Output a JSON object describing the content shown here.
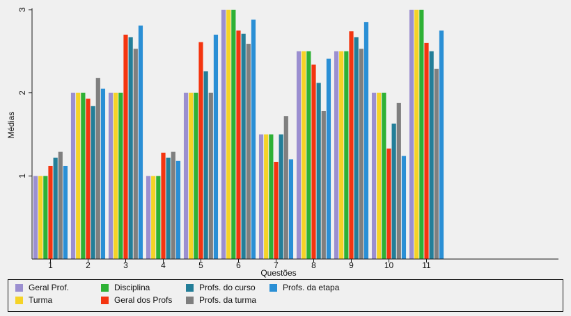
{
  "chart_data": {
    "type": "bar",
    "title": "",
    "xlabel": "Questões",
    "ylabel": "Médias",
    "ylim": [
      0.0,
      3.0
    ],
    "yticks": [
      1,
      2,
      3
    ],
    "categories": [
      "1",
      "2",
      "3",
      "4",
      "5",
      "6",
      "7",
      "8",
      "9",
      "10",
      "11"
    ],
    "x_extra_slots": 3,
    "grid": false,
    "legend_position": "bottom",
    "series": [
      {
        "name": "Geral Prof.",
        "color": "#9b8fd0",
        "values": [
          1.0,
          2.0,
          2.0,
          1.0,
          2.0,
          3.0,
          1.5,
          2.5,
          2.5,
          2.0,
          3.0
        ]
      },
      {
        "name": "Turma",
        "color": "#f5d327",
        "values": [
          1.0,
          2.0,
          2.0,
          1.0,
          2.0,
          3.0,
          1.5,
          2.5,
          2.5,
          2.0,
          3.0
        ]
      },
      {
        "name": "Disciplina",
        "color": "#2eb135",
        "values": [
          1.0,
          2.0,
          2.0,
          1.0,
          2.0,
          3.0,
          1.5,
          2.5,
          2.5,
          2.0,
          3.0
        ]
      },
      {
        "name": "Geral dos Profs",
        "color": "#f43510",
        "values": [
          1.12,
          1.93,
          2.7,
          1.28,
          2.61,
          2.75,
          1.17,
          2.34,
          2.74,
          1.33,
          2.6
        ]
      },
      {
        "name": "Profs. do curso",
        "color": "#237e98",
        "values": [
          1.22,
          1.84,
          2.67,
          1.22,
          2.26,
          2.71,
          1.5,
          2.12,
          2.67,
          1.63,
          2.5
        ]
      },
      {
        "name": "Profs. da turma",
        "color": "#7f7f7f",
        "values": [
          1.29,
          2.18,
          2.53,
          1.29,
          2.0,
          2.59,
          1.72,
          1.78,
          2.53,
          1.88,
          2.29
        ]
      },
      {
        "name": "Profs. da etapa",
        "color": "#2a8fd5",
        "values": [
          1.12,
          2.05,
          2.81,
          1.18,
          2.7,
          2.88,
          1.2,
          2.41,
          2.85,
          1.24,
          2.75
        ]
      }
    ]
  }
}
